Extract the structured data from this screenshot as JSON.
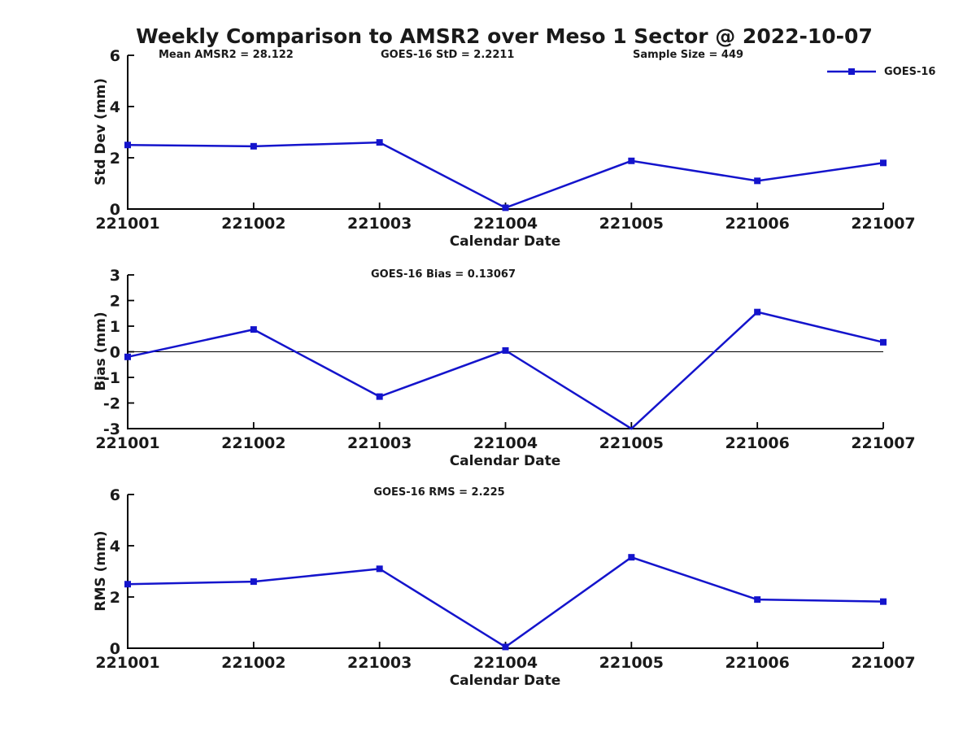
{
  "title": "Weekly Comparison to AMSR2 over Meso 1 Sector @ 2022-10-07",
  "colors": {
    "line": "#1414cc",
    "axis": "#000000",
    "text": "#1a1a1a"
  },
  "legend": {
    "label": "GOES-16"
  },
  "chart_data": [
    {
      "type": "line",
      "name": "std-dev-plot",
      "annotations": [
        "Mean AMSR2 = 28.122",
        "GOES-16 StD = 2.2211",
        "Sample Size = 449"
      ],
      "ylabel": "Std Dev (mm)",
      "xlabel": "Calendar Date",
      "categories": [
        "221001",
        "221002",
        "221003",
        "221004",
        "221005",
        "221006",
        "221007"
      ],
      "series": [
        {
          "name": "GOES-16",
          "values": [
            2.5,
            2.45,
            2.6,
            0.05,
            1.88,
            1.1,
            1.8
          ]
        }
      ],
      "ylim": [
        0,
        6
      ],
      "yticks": [
        0,
        2,
        4,
        6
      ],
      "zero_line": false,
      "grid": false,
      "legend_position": "top-right",
      "marker": "square"
    },
    {
      "type": "line",
      "name": "bias-plot",
      "subtitle": "GOES-16 Bias  = 0.13067",
      "ylabel": "Bias (mm)",
      "xlabel": "Calendar Date",
      "categories": [
        "221001",
        "221002",
        "221003",
        "221004",
        "221005",
        "221006",
        "221007"
      ],
      "series": [
        {
          "name": "GOES-16",
          "values": [
            -0.2,
            0.87,
            -1.75,
            0.05,
            -3.0,
            1.55,
            0.37
          ]
        }
      ],
      "ylim": [
        -3,
        3
      ],
      "yticks": [
        -3,
        -2,
        -1,
        0,
        1,
        2,
        3
      ],
      "zero_line": true,
      "grid": false,
      "marker": "square"
    },
    {
      "type": "line",
      "name": "rms-plot",
      "subtitle": "GOES-16 RMS = 2.225",
      "ylabel": "RMS (mm)",
      "xlabel": "Calendar Date",
      "categories": [
        "221001",
        "221002",
        "221003",
        "221004",
        "221005",
        "221006",
        "221007"
      ],
      "series": [
        {
          "name": "GOES-16",
          "values": [
            2.5,
            2.6,
            3.1,
            0.05,
            3.55,
            1.9,
            1.82
          ]
        }
      ],
      "ylim": [
        0,
        6
      ],
      "yticks": [
        0,
        2,
        4,
        6
      ],
      "zero_line": false,
      "grid": false,
      "marker": "square"
    }
  ]
}
